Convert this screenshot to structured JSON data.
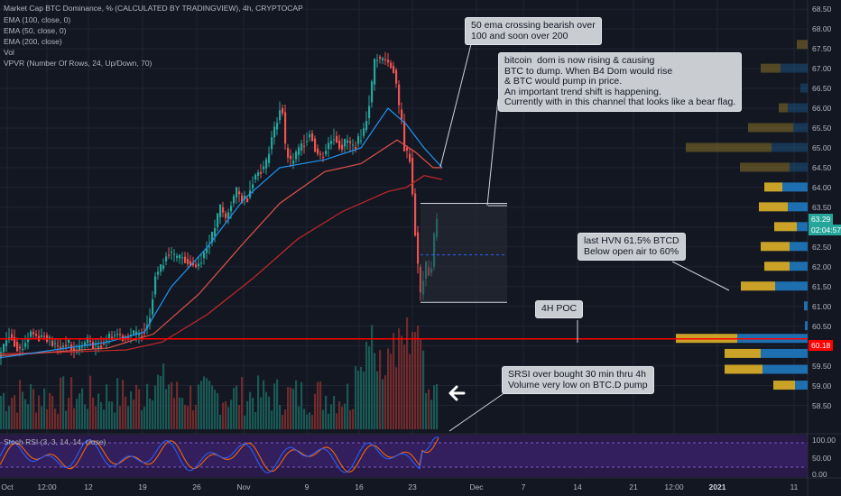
{
  "header": {
    "title": "Market Cap BTC Dominance, % (CALCULATED BY TRADINGVIEW), 4h, CRYPTOCAP",
    "indicators": [
      "EMA (100, close, 0)",
      "EMA (50, close, 0)",
      "EMA (200, close)",
      "Vol",
      "VPVR (Number Of Rows, 24, Up/Down, 70)"
    ],
    "stoch_label": "Stoch RSI (3, 3, 14, 14, close)"
  },
  "notes": {
    "ema_cross": "50 ema crossing bearish over\n100 and soon over 200",
    "btc_dom": "bitcoin  dom is now rising & causing\nBTC to dump. When B4 Dom would rise\n& BTC would pump in price.\nAn important trend shift is happening.\nCurrently with in this channel that looks like a bear flag.",
    "hvn": "last HVN 61.5% BTCD\nBelow open air to 60%",
    "poc": "4H POC",
    "srsi": "SRSI over bought 30 min thru 4h\nVolume very low on BTC.D pump"
  },
  "colors": {
    "up": "#26a69a",
    "down": "#ef5350",
    "ema50": "#2196f3",
    "ema100": "#e0534a",
    "ema200": "#c62828",
    "poc": "#ff0000",
    "stoch_k": "#2962ff",
    "stoch_d": "#ff6d00"
  },
  "price_tags": {
    "last": "63.29",
    "countdown": "02:04:57",
    "poc": "60.18"
  },
  "chart_data": {
    "type": "candlestick",
    "y_axis": {
      "min": 58.25,
      "max": 68.55,
      "ticks": [
        "68.50",
        "68.00",
        "67.50",
        "67.00",
        "66.50",
        "66.00",
        "65.50",
        "65.00",
        "64.50",
        "64.00",
        "63.50",
        "63.00",
        "62.50",
        "62.00",
        "61.50",
        "61.00",
        "60.50",
        "60.00",
        "59.50",
        "59.00",
        "58.50"
      ]
    },
    "stoch_axis": {
      "ticks": [
        "100.00",
        "50.00",
        "0.00"
      ]
    },
    "x_ticks": [
      "Oct",
      "12:00",
      "12",
      "19",
      "26",
      "Nov",
      "9",
      "16",
      "23",
      "Dec",
      "7",
      "14",
      "21",
      "12:00",
      "2021",
      "11"
    ],
    "close_path": [
      [
        0,
        59.7
      ],
      [
        4,
        59.9
      ],
      [
        8,
        60.1
      ],
      [
        12,
        60.3
      ],
      [
        16,
        60.2
      ],
      [
        20,
        60.0
      ],
      [
        24,
        59.9
      ],
      [
        28,
        60.0
      ],
      [
        31,
        60.15
      ],
      [
        36,
        60.35
      ],
      [
        44,
        60.22
      ],
      [
        52,
        60.28
      ],
      [
        60,
        60.05
      ],
      [
        68,
        59.95
      ],
      [
        76,
        60.1
      ],
      [
        84,
        59.85
      ],
      [
        92,
        60.0
      ],
      [
        100,
        60.15
      ],
      [
        108,
        59.95
      ],
      [
        116,
        60.1
      ],
      [
        124,
        60.25
      ],
      [
        132,
        60.3
      ],
      [
        140,
        60.2
      ],
      [
        148,
        60.32
      ],
      [
        156,
        60.25
      ],
      [
        164,
        60.5
      ],
      [
        168,
        60.8
      ],
      [
        174,
        61.8
      ],
      [
        180,
        61.95
      ],
      [
        184,
        62.2
      ],
      [
        188,
        62.4
      ],
      [
        196,
        62.2
      ],
      [
        204,
        62.25
      ],
      [
        212,
        62.1
      ],
      [
        220,
        62.0
      ],
      [
        228,
        62.35
      ],
      [
        236,
        62.7
      ],
      [
        240,
        63.0
      ],
      [
        246,
        63.5
      ],
      [
        252,
        63.2
      ],
      [
        258,
        63.6
      ],
      [
        264,
        63.9
      ],
      [
        270,
        63.7
      ],
      [
        276,
        63.75
      ],
      [
        282,
        64.2
      ],
      [
        290,
        64.45
      ],
      [
        296,
        64.5
      ],
      [
        302,
        65.2
      ],
      [
        308,
        65.6
      ],
      [
        314,
        66.2
      ],
      [
        318,
        65.0
      ],
      [
        324,
        64.6
      ],
      [
        332,
        64.9
      ],
      [
        340,
        65.2
      ],
      [
        346,
        65.4
      ],
      [
        352,
        64.9
      ],
      [
        358,
        64.75
      ],
      [
        366,
        65.1
      ],
      [
        372,
        65.3
      ],
      [
        380,
        65.0
      ],
      [
        386,
        65.2
      ],
      [
        392,
        65.0
      ],
      [
        400,
        65.2
      ],
      [
        406,
        65.5
      ],
      [
        410,
        66.0
      ],
      [
        414,
        66.6
      ],
      [
        418,
        67.4
      ],
      [
        422,
        67.2
      ],
      [
        428,
        67.25
      ],
      [
        434,
        67.1
      ],
      [
        440,
        66.9
      ],
      [
        443,
        66.0
      ],
      [
        446,
        65.9
      ],
      [
        450,
        65.0
      ],
      [
        454,
        64.8
      ],
      [
        458,
        64.7
      ],
      [
        460,
        63.0
      ],
      [
        463,
        62.8
      ],
      [
        466,
        61.6
      ],
      [
        468,
        61.3
      ],
      [
        470,
        61.6
      ],
      [
        474,
        62.0
      ],
      [
        478,
        61.8
      ],
      [
        482,
        62.2
      ],
      [
        484,
        63.29
      ]
    ],
    "ema50_path": [
      [
        0,
        59.7
      ],
      [
        60,
        59.9
      ],
      [
        120,
        60.1
      ],
      [
        160,
        60.35
      ],
      [
        190,
        61.5
      ],
      [
        230,
        62.5
      ],
      [
        270,
        63.7
      ],
      [
        310,
        64.5
      ],
      [
        360,
        64.7
      ],
      [
        400,
        65.0
      ],
      [
        430,
        66.0
      ],
      [
        450,
        65.6
      ],
      [
        470,
        65.0
      ],
      [
        490,
        64.5
      ]
    ],
    "ema100_path": [
      [
        0,
        59.75
      ],
      [
        60,
        59.85
      ],
      [
        120,
        59.95
      ],
      [
        170,
        60.3
      ],
      [
        220,
        61.3
      ],
      [
        270,
        62.6
      ],
      [
        310,
        63.6
      ],
      [
        360,
        64.4
      ],
      [
        400,
        64.6
      ],
      [
        440,
        65.2
      ],
      [
        460,
        64.9
      ],
      [
        480,
        64.5
      ],
      [
        490,
        64.5
      ]
    ],
    "ema200_path": [
      [
        0,
        59.8
      ],
      [
        80,
        59.85
      ],
      [
        140,
        59.9
      ],
      [
        180,
        60.1
      ],
      [
        230,
        60.8
      ],
      [
        280,
        61.7
      ],
      [
        330,
        62.7
      ],
      [
        380,
        63.4
      ],
      [
        430,
        63.9
      ],
      [
        450,
        64.0
      ],
      [
        470,
        64.3
      ],
      [
        490,
        64.2
      ]
    ],
    "channel": {
      "top": [
        [
          466,
          63.6
        ],
        [
          562,
          63.6
        ]
      ],
      "bottom": [
        [
          466,
          61.1
        ],
        [
          562,
          61.1
        ]
      ],
      "mid": 62.3
    },
    "poc_level": 60.18,
    "hvn_level": 61.5,
    "vpvr_rows": [
      {
        "y": 67.6,
        "up": 12,
        "down": 0
      },
      {
        "y": 67.0,
        "up": 22,
        "down": 30
      },
      {
        "y": 66.5,
        "up": 0,
        "down": 8
      },
      {
        "y": 66.0,
        "up": 10,
        "down": 22
      },
      {
        "y": 65.5,
        "up": 50,
        "down": 16
      },
      {
        "y": 65.0,
        "up": 95,
        "down": 40
      },
      {
        "y": 64.5,
        "up": 55,
        "down": 20
      },
      {
        "y": 64.0,
        "up": 20,
        "down": 28
      },
      {
        "y": 63.5,
        "up": 32,
        "down": 22
      },
      {
        "y": 63.0,
        "up": 25,
        "down": 12
      },
      {
        "y": 62.5,
        "up": 32,
        "down": 20
      },
      {
        "y": 62.0,
        "up": 28,
        "down": 20
      },
      {
        "y": 61.5,
        "up": 38,
        "down": 36
      },
      {
        "y": 61.0,
        "up": 0,
        "down": 4
      },
      {
        "y": 60.5,
        "up": 0,
        "down": 3
      },
      {
        "y": 60.18,
        "up": 68,
        "down": 78
      },
      {
        "y": 59.8,
        "up": 40,
        "down": 52
      },
      {
        "y": 59.4,
        "up": 42,
        "down": 50
      },
      {
        "y": 59.0,
        "up": 24,
        "down": 14
      }
    ]
  }
}
